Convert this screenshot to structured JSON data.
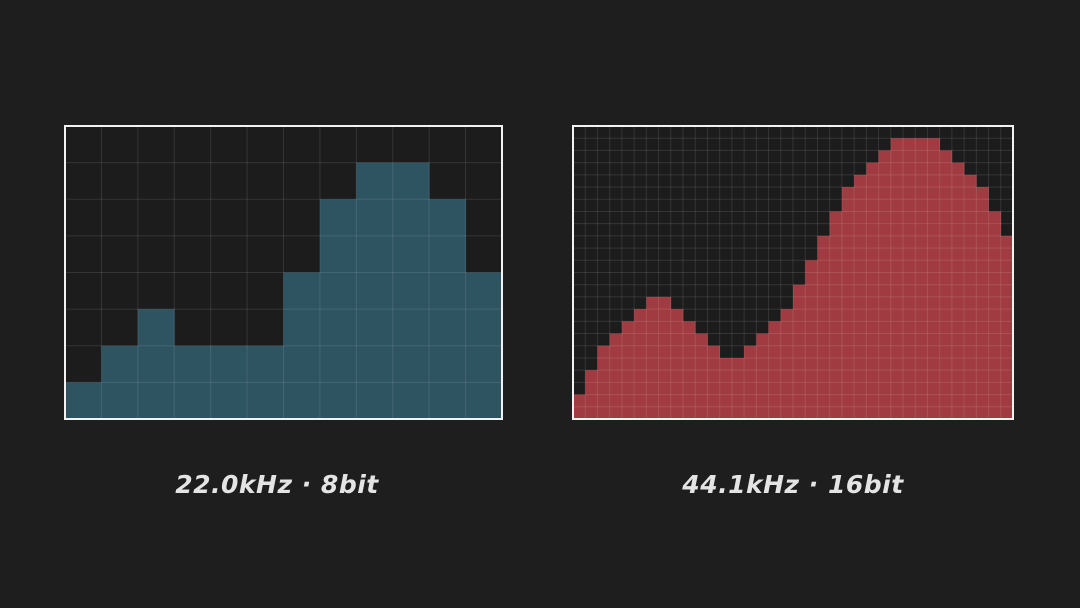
{
  "panels": [
    {
      "label": "22.0kHz · 8bit",
      "color": "#2e5361",
      "rows": 8,
      "levels": [
        1,
        2,
        3,
        2,
        2,
        2,
        4,
        6,
        7,
        7,
        6,
        4
      ]
    },
    {
      "label": "44.1kHz · 16bit",
      "color": "#a03c41",
      "rows": 24,
      "levels": [
        2,
        4,
        6,
        7,
        8,
        9,
        10,
        10,
        9,
        8,
        7,
        6,
        5,
        5,
        6,
        7,
        8,
        9,
        11,
        13,
        15,
        17,
        19,
        20,
        21,
        22,
        23,
        23,
        23,
        23,
        22,
        21,
        20,
        19,
        17,
        15
      ]
    }
  ]
}
